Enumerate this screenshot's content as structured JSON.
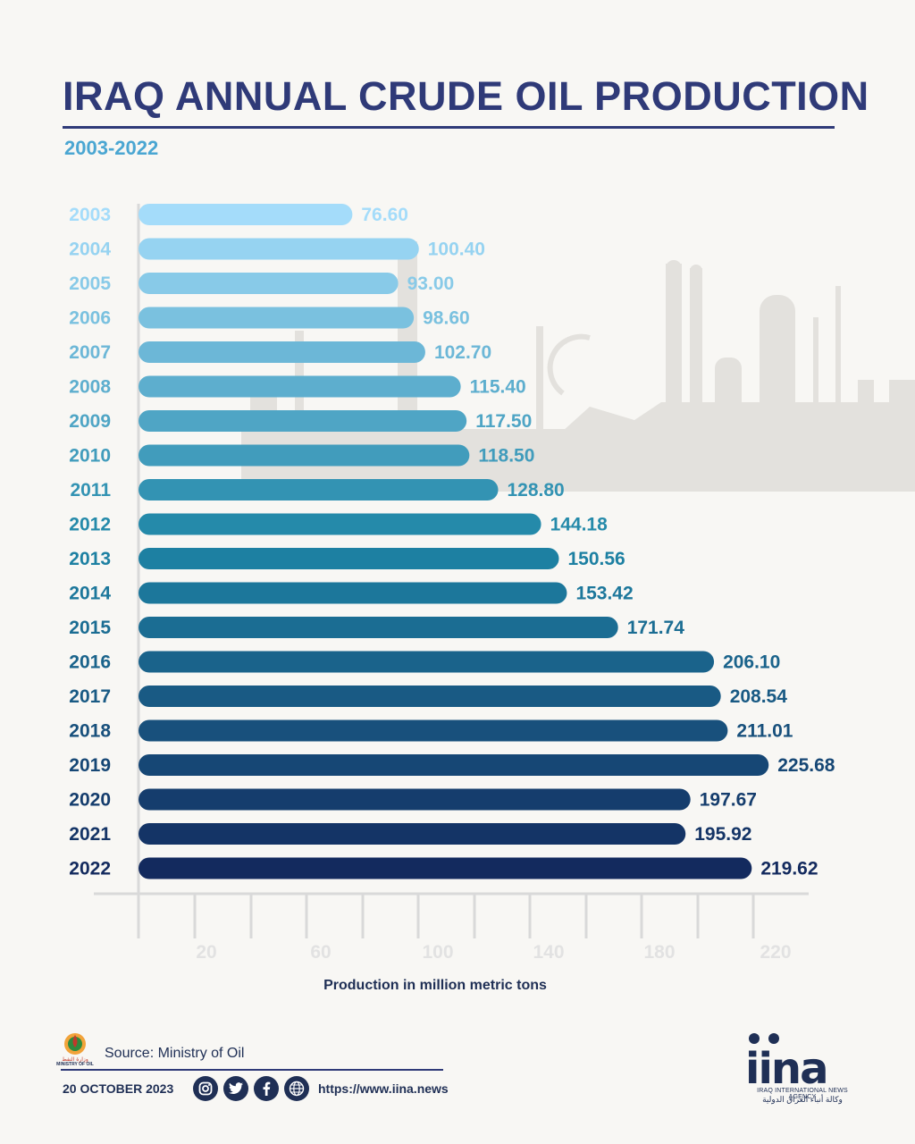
{
  "chart_data": {
    "type": "bar",
    "orientation": "horizontal",
    "title": "IRAQ ANNUAL CRUDE OIL PRODUCTION",
    "subtitle": "2003-2022",
    "xlabel": "Production in million metric tons",
    "ylabel": "",
    "categories": [
      "2003",
      "2004",
      "2005",
      "2006",
      "2007",
      "2008",
      "2009",
      "2010",
      "2011",
      "2012",
      "2013",
      "2014",
      "2015",
      "2016",
      "2017",
      "2018",
      "2019",
      "2020",
      "2021",
      "2022"
    ],
    "values": [
      76.6,
      100.4,
      93.0,
      98.6,
      102.7,
      115.4,
      117.5,
      118.5,
      128.8,
      144.18,
      150.56,
      153.42,
      171.74,
      206.1,
      208.54,
      211.01,
      225.68,
      197.67,
      195.92,
      219.62
    ],
    "value_labels": [
      "76.60",
      "100.40",
      "93.00",
      "98.60",
      "102.70",
      "115.40",
      "117.50",
      "118.50",
      "128.80",
      "144.18",
      "150.56",
      "153.42",
      "171.74",
      "206.10",
      "208.54",
      "211.01",
      "225.68",
      "197.67",
      "195.92",
      "219.62"
    ],
    "x_ticks": [
      20,
      60,
      100,
      140,
      180,
      220
    ],
    "xlim": [
      0,
      240
    ],
    "grid": false,
    "legend": "none",
    "colors": {
      "first_bar": "#a4dcfa",
      "mid_bar": "#1e85a6",
      "last_bar": "#132a5e",
      "title": "#2f3a78",
      "subtitle": "#4aa6d2",
      "axis": "#d9d9d9"
    }
  },
  "footer": {
    "source": "Source: Ministry of Oil",
    "ministry_logo_caption": "MINISTRY OF OIL",
    "date": "20 OCTOBER  2023",
    "url": "https://www.iina.news",
    "social_icons": [
      "instagram-icon",
      "twitter-icon",
      "facebook-icon",
      "globe-icon"
    ],
    "brand": "iina",
    "brand_tagline": "IRAQ INTERNATIONAL NEWS AGENCY",
    "brand_tagline_ar": "وكالة أنباء العراق الدولية"
  }
}
